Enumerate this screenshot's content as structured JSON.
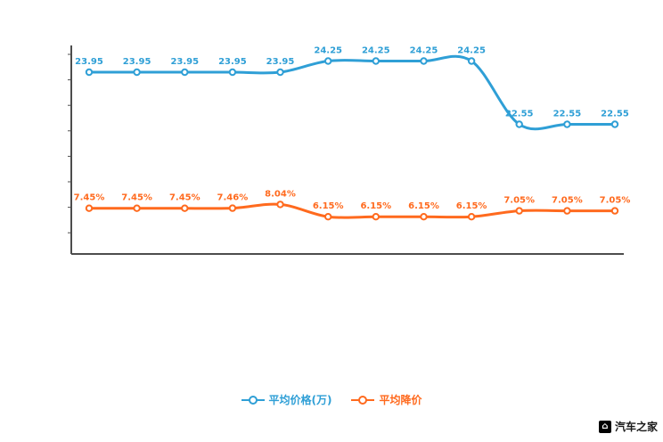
{
  "chart_data": {
    "type": "line",
    "categories": [],
    "series": [
      {
        "name": "平均价格(万)",
        "color": "#2f9fd6",
        "values": [
          23.95,
          23.95,
          23.95,
          23.95,
          23.95,
          24.25,
          24.25,
          24.25,
          24.25,
          22.55,
          22.55,
          22.55
        ],
        "labels": [
          "23.95",
          "23.95",
          "23.95",
          "23.95",
          "23.95",
          "24.25",
          "24.25",
          "24.25",
          "24.25",
          "22.55",
          "22.55",
          "22.55"
        ]
      },
      {
        "name": "平均降价",
        "color": "#ff6a1e",
        "values": [
          7.45,
          7.45,
          7.45,
          7.46,
          8.04,
          6.15,
          6.15,
          6.15,
          6.15,
          7.05,
          7.05,
          7.05
        ],
        "labels": [
          "7.45%",
          "7.45%",
          "7.45%",
          "7.46%",
          "8.04%",
          "6.15%",
          "6.15%",
          "6.15%",
          "6.15%",
          "7.05%",
          "7.05%",
          "7.05%"
        ]
      }
    ],
    "title": "",
    "xlabel": "",
    "ylabel": "",
    "grid": false,
    "legend_position": "bottom"
  },
  "legend": {
    "items": [
      {
        "label": "平均价格(万)"
      },
      {
        "label": "平均降价"
      }
    ]
  },
  "watermark": {
    "text": "汽车之家"
  },
  "icons": {
    "autohome_logo": "⌂"
  },
  "axis_color": "#4d4d4d"
}
